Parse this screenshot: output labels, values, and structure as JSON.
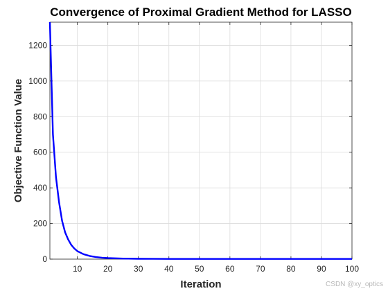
{
  "chart_data": {
    "type": "line",
    "title": "Convergence of Proximal Gradient Method for LASSO",
    "xlabel": "Iteration",
    "ylabel": "Objective Function Value",
    "xlim": [
      1,
      100
    ],
    "ylim": [
      0,
      1330
    ],
    "xticks": [
      10,
      20,
      30,
      40,
      50,
      60,
      70,
      80,
      90,
      100
    ],
    "yticks": [
      0,
      200,
      400,
      600,
      800,
      1000,
      1200
    ],
    "grid": true,
    "legend": "none",
    "series": [
      {
        "color": "#0000ff",
        "x": [
          1,
          2,
          3,
          4,
          5,
          6,
          7,
          8,
          9,
          10,
          12,
          14,
          16,
          18,
          20,
          25,
          30,
          35,
          40,
          50,
          60,
          70,
          80,
          90,
          100
        ],
        "y": [
          1330,
          700,
          460,
          320,
          215,
          150,
          110,
          80,
          60,
          45,
          28,
          18,
          12,
          8,
          6,
          3,
          2,
          1.5,
          1.2,
          1,
          1,
          1,
          1,
          1,
          1
        ]
      }
    ]
  },
  "watermark": "CSDN @xy_optics"
}
